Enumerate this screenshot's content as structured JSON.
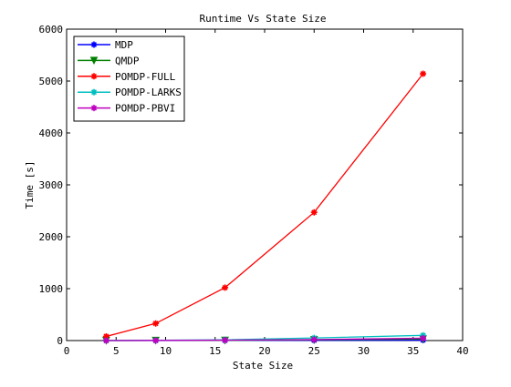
{
  "chart_data": {
    "type": "line",
    "title": "Runtime Vs State Size",
    "xlabel": "State Size",
    "ylabel": "Time [s]",
    "xlim": [
      0,
      40
    ],
    "ylim": [
      0,
      6000
    ],
    "xticks": [
      0,
      5,
      10,
      15,
      20,
      25,
      30,
      35,
      40
    ],
    "yticks": [
      0,
      1000,
      2000,
      3000,
      4000,
      5000,
      6000
    ],
    "grid": false,
    "legend_position": "top-left",
    "x": [
      4,
      9,
      16,
      25,
      36
    ],
    "series": [
      {
        "name": "MDP",
        "color": "#0000ff",
        "marker": "star",
        "values": [
          0,
          1,
          2,
          4,
          8
        ]
      },
      {
        "name": "QMDP",
        "color": "#008000",
        "marker": "triangle-down",
        "values": [
          0,
          2,
          5,
          15,
          30
        ]
      },
      {
        "name": "POMDP-FULL",
        "color": "#ff0000",
        "marker": "star",
        "values": [
          80,
          330,
          1020,
          2470,
          5140
        ]
      },
      {
        "name": "POMDP-LARKS",
        "color": "#00bfbf",
        "marker": "star",
        "values": [
          1,
          5,
          15,
          50,
          100
        ]
      },
      {
        "name": "POMDP-PBVI",
        "color": "#bf00bf",
        "marker": "star",
        "values": [
          0,
          3,
          8,
          20,
          45
        ]
      }
    ]
  }
}
